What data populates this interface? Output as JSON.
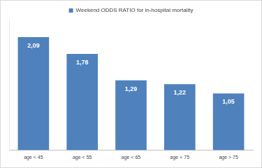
{
  "chart_data": {
    "type": "bar",
    "categories": [
      "age < 45",
      "age < 55",
      "age < 65",
      "age < 75",
      "age > 75"
    ],
    "series": [
      {
        "name": "Weekend ODDS RATIO for in-hospital mortality",
        "color": "#4f81bd",
        "values": [
          2.09,
          1.78,
          1.29,
          1.22,
          1.05
        ],
        "value_labels": [
          "2,09",
          "1,78",
          "1,29",
          "1,22",
          "1,05"
        ]
      }
    ],
    "ylim": [
      0,
      2.4
    ],
    "grid": false,
    "legend": "top",
    "data_labels": true,
    "tick_labels": "x"
  }
}
